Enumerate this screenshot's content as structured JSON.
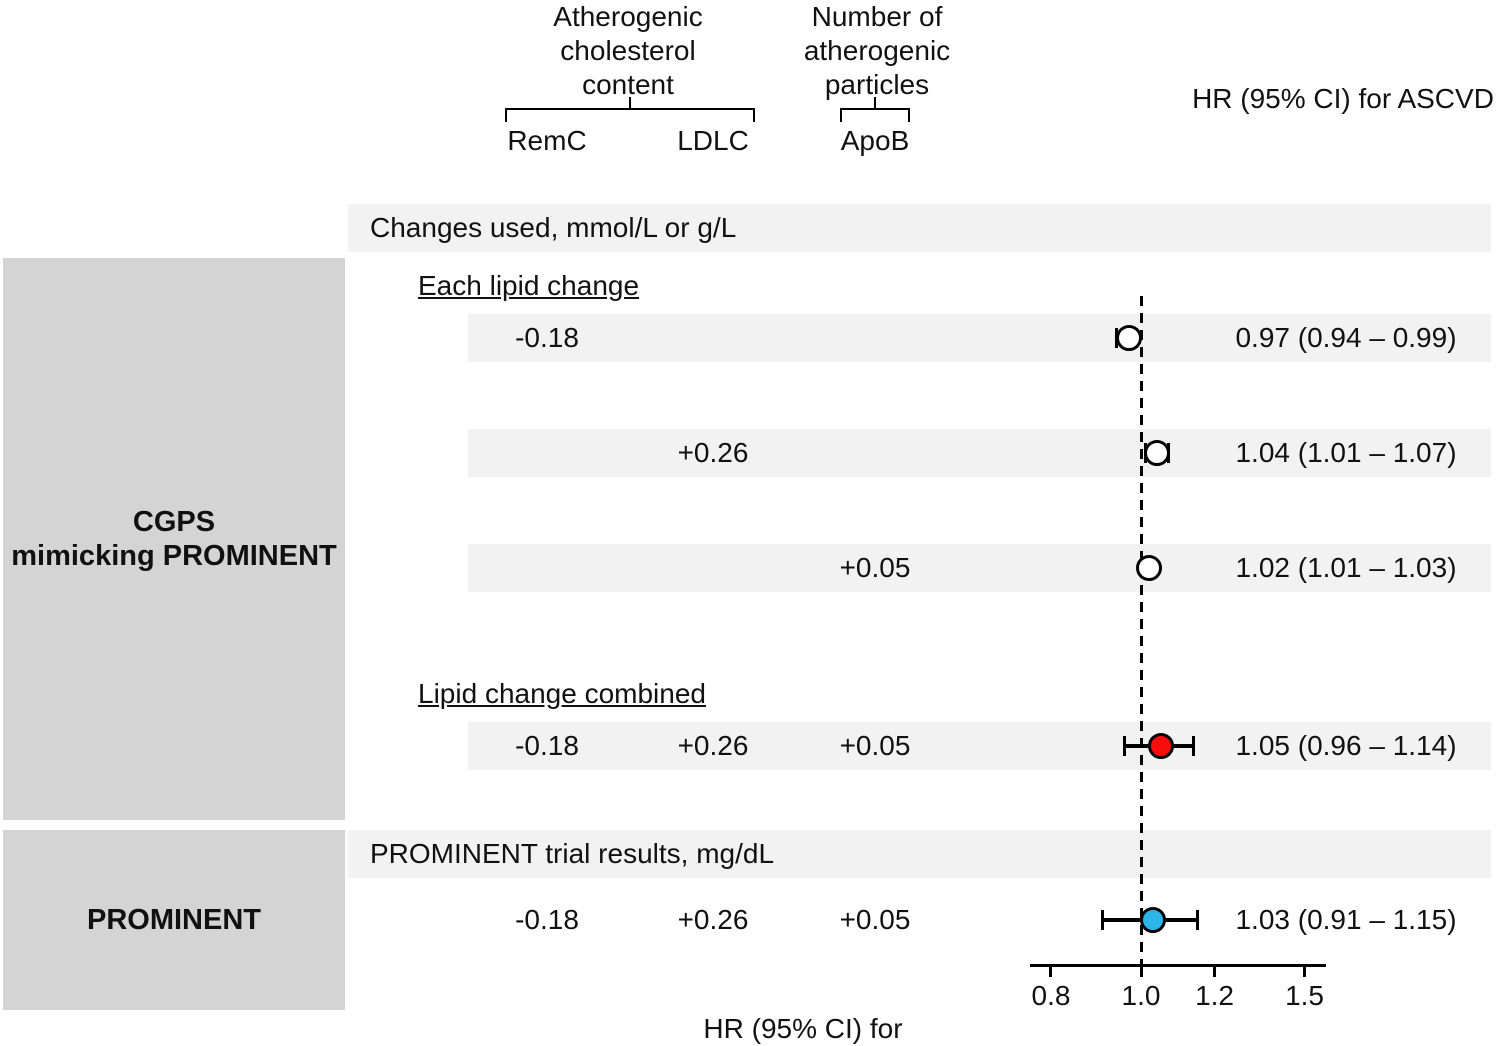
{
  "header": {
    "col_group_cholesterol": "Atherogenic\ncholesterol\ncontent",
    "col_group_particles": "Number of\natherogenic\nparticles",
    "col_remc": "RemC",
    "col_ldlc": "LDLC",
    "col_apob": "ApoB",
    "hr_header": "HR (95% CI) for ASCVD"
  },
  "sections": {
    "cgps_band_label": "Changes used, mmol/L or g/L",
    "cgps_group_label": "CGPS\nmimicking PROMINENT",
    "each_lipid_heading": "Each lipid change",
    "combined_heading": "Lipid change combined",
    "prominent_band_label": "PROMINENT trial results, mg/dL",
    "prominent_group_label": "PROMINENT"
  },
  "axis": {
    "label": "HR (95% CI) for ASCVD"
  },
  "chart_data": {
    "type": "forest",
    "x_axis": {
      "scale": "log",
      "label": "HR (95% CI) for ASCVD",
      "ticks": [
        0.8,
        1.0,
        1.2,
        1.5
      ],
      "range": [
        0.76,
        1.55
      ],
      "reference_line": 1.0
    },
    "groups": [
      "CGPS mimicking PROMINENT",
      "PROMINENT"
    ],
    "columns": [
      "RemC",
      "LDLC",
      "ApoB"
    ],
    "rows": [
      {
        "group": "CGPS mimicking PROMINENT",
        "section": "Each lipid change",
        "changes": {
          "RemC": "-0.18",
          "LDLC": "",
          "ApoB": ""
        },
        "hr": 0.97,
        "ci_low": 0.94,
        "ci_high": 0.99,
        "hr_label": "0.97 (0.94 – 0.99)",
        "marker_color": "#ffffff"
      },
      {
        "group": "CGPS mimicking PROMINENT",
        "section": "Each lipid change",
        "changes": {
          "RemC": "",
          "LDLC": "+0.26",
          "ApoB": ""
        },
        "hr": 1.04,
        "ci_low": 1.01,
        "ci_high": 1.07,
        "hr_label": "1.04 (1.01 – 1.07)",
        "marker_color": "#ffffff"
      },
      {
        "group": "CGPS mimicking PROMINENT",
        "section": "Each lipid change",
        "changes": {
          "RemC": "",
          "LDLC": "",
          "ApoB": "+0.05"
        },
        "hr": 1.02,
        "ci_low": 1.01,
        "ci_high": 1.03,
        "hr_label": "1.02 (1.01 – 1.03)",
        "marker_color": "#ffffff"
      },
      {
        "group": "CGPS mimicking PROMINENT",
        "section": "Lipid change combined",
        "changes": {
          "RemC": "-0.18",
          "LDLC": "+0.26",
          "ApoB": "+0.05"
        },
        "hr": 1.05,
        "ci_low": 0.96,
        "ci_high": 1.14,
        "hr_label": "1.05 (0.96 – 1.14)",
        "marker_color": "#f80c0c"
      },
      {
        "group": "PROMINENT",
        "section": "PROMINENT trial results, mg/dL",
        "changes": {
          "RemC": "-0.18",
          "LDLC": "+0.26",
          "ApoB": "+0.05"
        },
        "hr": 1.03,
        "ci_low": 0.91,
        "ci_high": 1.15,
        "hr_label": "1.03 (0.91 – 1.15)",
        "marker_color": "#2cb5e8"
      }
    ],
    "colors": {
      "band_gray": "#f2f2f2",
      "sidebar_gray": "#d4d4d4",
      "combined_marker_red": "#f80c0c",
      "prominent_marker_blue": "#2cb5e8"
    }
  }
}
